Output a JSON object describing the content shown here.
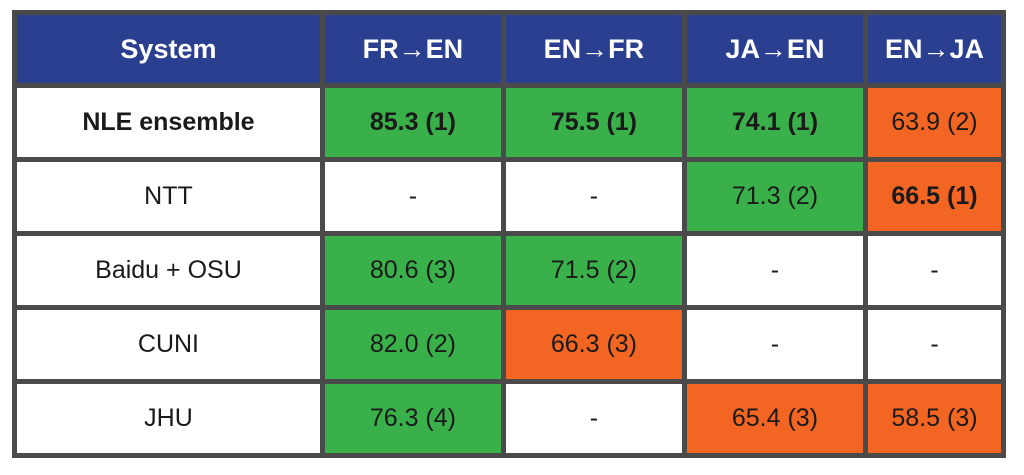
{
  "colors": {
    "header": "#2a3f8f",
    "grid": "#4a4a4a",
    "green": "#3ab04a",
    "orange": "#f26522",
    "white": "#ffffff"
  },
  "table": {
    "headers": [
      "System",
      "FR→EN",
      "EN→FR",
      "JA→EN",
      "EN→JA"
    ],
    "rows": [
      {
        "system": "NLE ensemble",
        "system_bold": true,
        "cells": [
          {
            "text": "85.3 (1)",
            "color": "green",
            "bold": true
          },
          {
            "text": "75.5 (1)",
            "color": "green",
            "bold": true
          },
          {
            "text": "74.1 (1)",
            "color": "green",
            "bold": true
          },
          {
            "text": "63.9 (2)",
            "color": "orange",
            "bold": false
          }
        ]
      },
      {
        "system": "NTT",
        "system_bold": false,
        "cells": [
          {
            "text": "-",
            "color": "white",
            "bold": false
          },
          {
            "text": "-",
            "color": "white",
            "bold": false
          },
          {
            "text": "71.3 (2)",
            "color": "green",
            "bold": false
          },
          {
            "text": "66.5 (1)",
            "color": "orange",
            "bold": true
          }
        ]
      },
      {
        "system": "Baidu + OSU",
        "system_bold": false,
        "cells": [
          {
            "text": "80.6 (3)",
            "color": "green",
            "bold": false
          },
          {
            "text": "71.5 (2)",
            "color": "green",
            "bold": false
          },
          {
            "text": "-",
            "color": "white",
            "bold": false
          },
          {
            "text": "-",
            "color": "white",
            "bold": false
          }
        ]
      },
      {
        "system": "CUNI",
        "system_bold": false,
        "cells": [
          {
            "text": "82.0 (2)",
            "color": "green",
            "bold": false
          },
          {
            "text": "66.3 (3)",
            "color": "orange",
            "bold": false
          },
          {
            "text": "-",
            "color": "white",
            "bold": false
          },
          {
            "text": "-",
            "color": "white",
            "bold": false
          }
        ]
      },
      {
        "system": "JHU",
        "system_bold": false,
        "cells": [
          {
            "text": "76.3 (4)",
            "color": "green",
            "bold": false
          },
          {
            "text": "-",
            "color": "white",
            "bold": false
          },
          {
            "text": "65.4 (3)",
            "color": "orange",
            "bold": false
          },
          {
            "text": "58.5 (3)",
            "color": "orange",
            "bold": false
          }
        ]
      }
    ]
  }
}
